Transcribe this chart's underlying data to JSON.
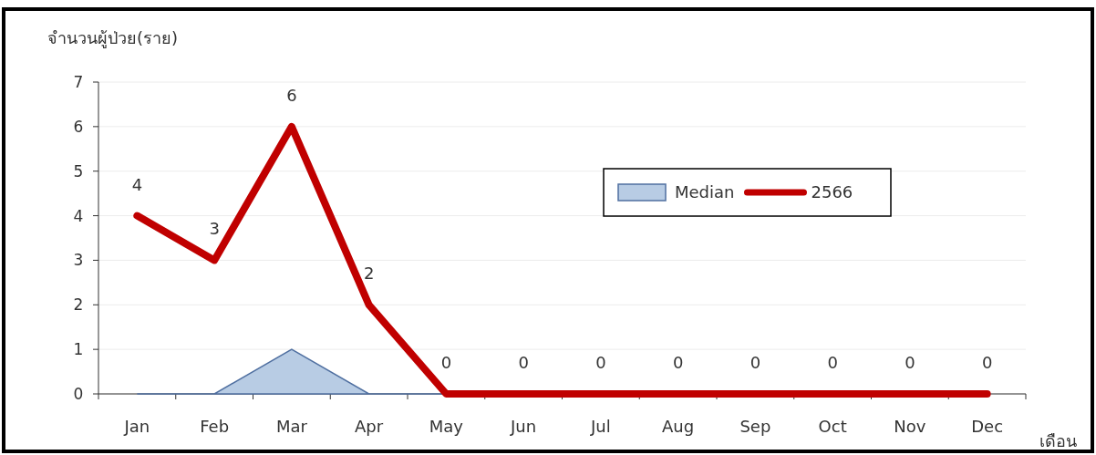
{
  "chart_data": {
    "type": "line",
    "ylabel": "จำนวนผู้ป่วย(ราย)",
    "xlabel": "เดือน",
    "categories": [
      "Jan",
      "Feb",
      "Mar",
      "Apr",
      "May",
      "Jun",
      "Jul",
      "Aug",
      "Sep",
      "Oct",
      "Nov",
      "Dec"
    ],
    "series": [
      {
        "name": "Median",
        "type": "area",
        "color": "#b8cce4",
        "values": [
          0,
          0,
          1,
          0,
          0,
          0,
          0,
          0,
          0,
          0,
          0,
          0
        ]
      },
      {
        "name": "2566",
        "type": "line",
        "color": "#c00000",
        "values": [
          4,
          3,
          6,
          2,
          0,
          0,
          0,
          0,
          0,
          0,
          0,
          0
        ],
        "value_labels": [
          "4",
          "3",
          "6",
          "2",
          "0",
          "0",
          "0",
          "0",
          "0",
          "0",
          "0",
          "0"
        ]
      }
    ],
    "ylim": [
      0,
      7
    ],
    "yticks": [
      0,
      1,
      2,
      3,
      4,
      5,
      6,
      7
    ],
    "grid": "y",
    "legend": "top right"
  }
}
